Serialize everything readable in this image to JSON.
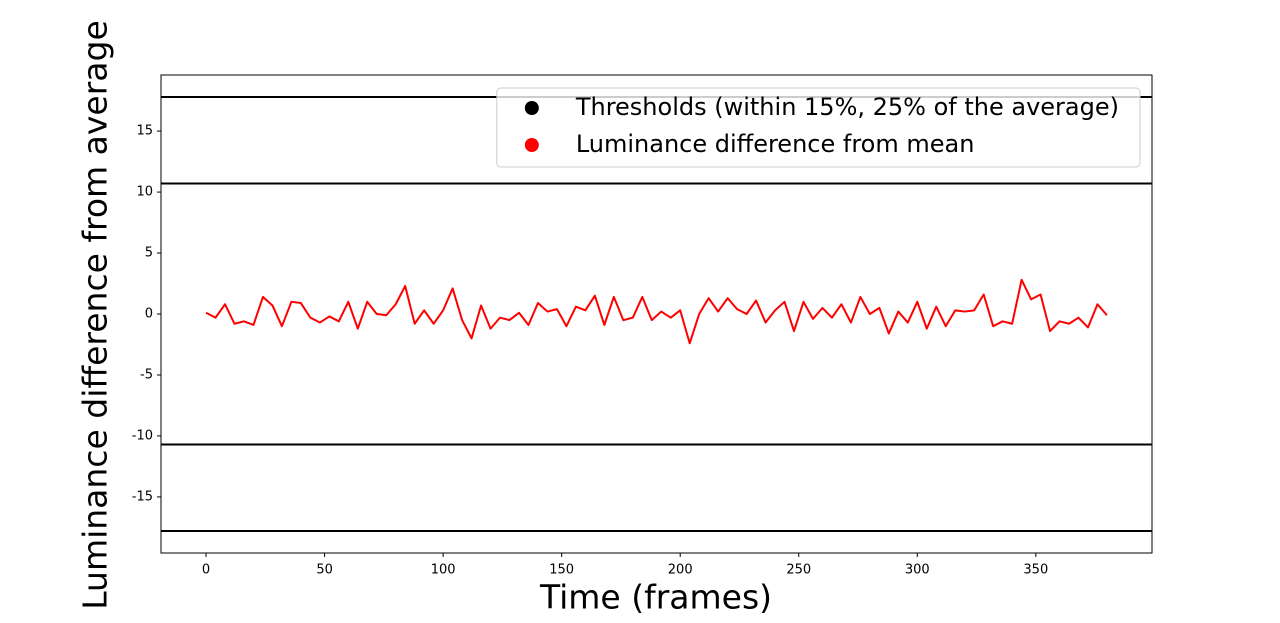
{
  "chart_data": {
    "type": "line",
    "x_label": "Time (frames)",
    "y_label": "Luminance difference from average",
    "x": [
      0,
      4,
      8,
      12,
      16,
      20,
      24,
      28,
      32,
      36,
      40,
      44,
      48,
      52,
      56,
      60,
      64,
      68,
      72,
      76,
      80,
      84,
      88,
      92,
      96,
      100,
      104,
      108,
      112,
      116,
      120,
      124,
      128,
      132,
      136,
      140,
      144,
      148,
      152,
      156,
      160,
      164,
      168,
      172,
      176,
      180,
      184,
      188,
      192,
      196,
      200,
      204,
      208,
      212,
      216,
      220,
      224,
      228,
      232,
      236,
      240,
      244,
      248,
      252,
      256,
      260,
      264,
      268,
      272,
      276,
      280,
      284,
      288,
      292,
      296,
      300,
      304,
      308,
      312,
      316,
      320,
      324,
      328,
      332,
      336,
      340,
      344,
      348,
      352,
      356,
      360,
      364,
      368,
      372,
      376,
      380
    ],
    "series": [
      {
        "name": "Luminance difference from mean",
        "color": "#ff0000",
        "values": [
          0.1,
          -0.3,
          0.8,
          -0.8,
          -0.6,
          -0.9,
          1.4,
          0.7,
          -1.0,
          1.0,
          0.9,
          -0.3,
          -0.7,
          -0.2,
          -0.6,
          1.0,
          -1.2,
          1.0,
          0.0,
          -0.1,
          0.8,
          2.3,
          -0.8,
          0.3,
          -0.8,
          0.3,
          2.1,
          -0.5,
          -2.0,
          0.7,
          -1.2,
          -0.3,
          -0.5,
          0.1,
          -0.9,
          0.9,
          0.2,
          0.4,
          -1.0,
          0.6,
          0.3,
          1.5,
          -0.9,
          1.4,
          -0.5,
          -0.3,
          1.4,
          -0.5,
          0.2,
          -0.3,
          0.3,
          -2.4,
          0.0,
          1.3,
          0.2,
          1.3,
          0.4,
          0.0,
          1.1,
          -0.7,
          0.3,
          1.0,
          -1.4,
          1.0,
          -0.4,
          0.5,
          -0.3,
          0.8,
          -0.7,
          1.4,
          0.0,
          0.5,
          -1.6,
          0.2,
          -0.7,
          1.0,
          -1.2,
          0.6,
          -1.0,
          0.3,
          0.2,
          0.3,
          1.6,
          -1.0,
          -0.6,
          -0.8,
          2.8,
          1.2,
          1.6,
          -1.4,
          -0.6,
          -0.8,
          -0.3,
          -1.1,
          0.8,
          -0.1
        ]
      }
    ],
    "hlines": {
      "name": "Thresholds (within 15%, 25% of the average)",
      "color": "#000000",
      "values": [
        17.8,
        10.7,
        -10.7,
        -17.8
      ]
    },
    "xlim": [
      -19,
      399
    ],
    "ylim": [
      -19.6,
      19.6
    ],
    "xticks": [
      0,
      50,
      100,
      150,
      200,
      250,
      300,
      350
    ],
    "yticks": [
      -15,
      -10,
      -5,
      0,
      5,
      10,
      15
    ],
    "legend": "upper right"
  }
}
